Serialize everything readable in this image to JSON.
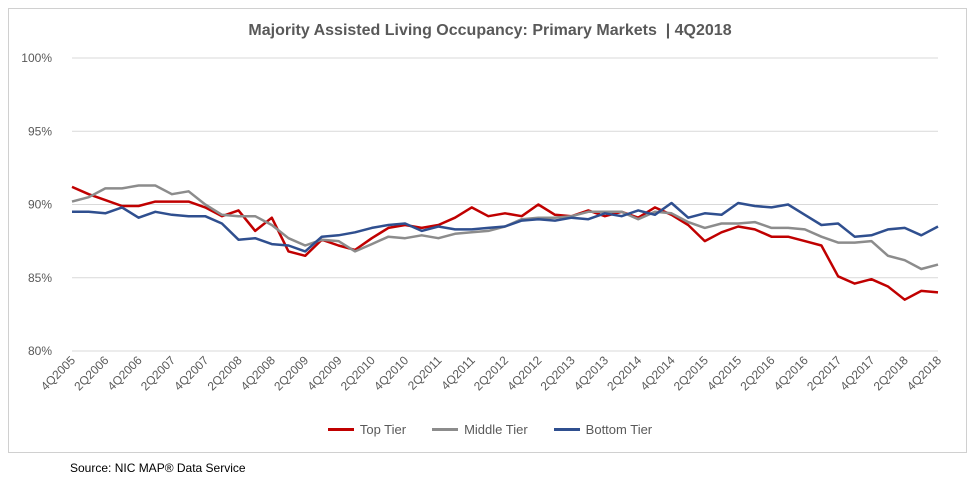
{
  "chart_data": {
    "type": "line",
    "title": "Majority Assisted Living Occupancy: Primary Markets  | 4Q2018",
    "ylim": [
      80,
      100
    ],
    "yticks": [
      80,
      85,
      90,
      95,
      100
    ],
    "ytick_labels": [
      "80%",
      "85%",
      "90%",
      "95%",
      "100%"
    ],
    "x": [
      "4Q2005",
      "1Q2006",
      "2Q2006",
      "3Q2006",
      "4Q2006",
      "1Q2007",
      "2Q2007",
      "3Q2007",
      "4Q2007",
      "1Q2008",
      "2Q2008",
      "3Q2008",
      "4Q2008",
      "1Q2009",
      "2Q2009",
      "3Q2009",
      "4Q2009",
      "1Q2010",
      "2Q2010",
      "3Q2010",
      "4Q2010",
      "1Q2011",
      "2Q2011",
      "3Q2011",
      "4Q2011",
      "1Q2012",
      "2Q2012",
      "3Q2012",
      "4Q2012",
      "1Q2013",
      "2Q2013",
      "3Q2013",
      "4Q2013",
      "1Q2014",
      "2Q2014",
      "3Q2014",
      "4Q2014",
      "1Q2015",
      "2Q2015",
      "3Q2015",
      "4Q2015",
      "1Q2016",
      "2Q2016",
      "3Q2016",
      "4Q2016",
      "1Q2017",
      "2Q2017",
      "3Q2017",
      "4Q2017",
      "1Q2018",
      "2Q2018",
      "3Q2018",
      "4Q2018"
    ],
    "xtick_labels": [
      "4Q2005",
      "2Q2006",
      "4Q2006",
      "2Q2007",
      "4Q2007",
      "2Q2008",
      "4Q2008",
      "2Q2009",
      "4Q2009",
      "2Q2010",
      "4Q2010",
      "2Q2011",
      "4Q2011",
      "2Q2012",
      "4Q2012",
      "2Q2013",
      "4Q2013",
      "2Q2014",
      "4Q2014",
      "2Q2015",
      "4Q2015",
      "2Q2016",
      "4Q2016",
      "2Q2017",
      "4Q2017",
      "2Q2018",
      "4Q2018"
    ],
    "series": [
      {
        "name": "Top Tier",
        "color": "#c00000",
        "values": [
          91.2,
          90.7,
          90.3,
          89.9,
          89.9,
          90.2,
          90.2,
          90.2,
          89.8,
          89.2,
          89.6,
          88.2,
          89.1,
          86.8,
          86.5,
          87.6,
          87.2,
          86.9,
          87.7,
          88.4,
          88.6,
          88.4,
          88.6,
          89.1,
          89.8,
          89.2,
          89.4,
          89.2,
          90.0,
          89.3,
          89.2,
          89.6,
          89.2,
          89.5,
          89.1,
          89.8,
          89.3,
          88.6,
          87.5,
          88.1,
          88.5,
          88.3,
          87.8,
          87.8,
          87.5,
          87.2,
          85.1,
          84.6,
          84.9,
          84.4,
          83.5,
          84.1,
          84.0
        ]
      },
      {
        "name": "Middle Tier",
        "color": "#8c8c8c",
        "values": [
          90.2,
          90.5,
          91.1,
          91.1,
          91.3,
          91.3,
          90.7,
          90.9,
          90.0,
          89.3,
          89.2,
          89.2,
          88.6,
          87.7,
          87.2,
          87.6,
          87.5,
          86.8,
          87.3,
          87.8,
          87.7,
          87.9,
          87.7,
          88.0,
          88.1,
          88.2,
          88.5,
          89.0,
          89.1,
          89.1,
          89.2,
          89.5,
          89.5,
          89.5,
          89.0,
          89.5,
          89.4,
          88.8,
          88.4,
          88.7,
          88.7,
          88.8,
          88.4,
          88.4,
          88.3,
          87.8,
          87.4,
          87.4,
          87.5,
          86.5,
          86.2,
          85.6,
          85.9
        ]
      },
      {
        "name": "Bottom Tier",
        "color": "#2f4f8f",
        "values": [
          89.5,
          89.5,
          89.4,
          89.8,
          89.1,
          89.5,
          89.3,
          89.2,
          89.2,
          88.7,
          87.6,
          87.7,
          87.3,
          87.2,
          86.8,
          87.8,
          87.9,
          88.1,
          88.4,
          88.6,
          88.7,
          88.2,
          88.5,
          88.3,
          88.3,
          88.4,
          88.5,
          88.9,
          89.0,
          88.9,
          89.1,
          89.0,
          89.4,
          89.2,
          89.6,
          89.3,
          90.1,
          89.1,
          89.4,
          89.3,
          90.1,
          89.9,
          89.8,
          90.0,
          89.3,
          88.6,
          88.7,
          87.8,
          87.9,
          88.3,
          88.4,
          87.9,
          88.5
        ]
      }
    ],
    "legend_position": "bottom",
    "grid": true
  },
  "legend": {
    "items": [
      {
        "label": "Top Tier",
        "color": "#c00000"
      },
      {
        "label": "Middle Tier",
        "color": "#8c8c8c"
      },
      {
        "label": "Bottom Tier",
        "color": "#2f4f8f"
      }
    ]
  },
  "source": "Source: NIC MAP® Data Service"
}
